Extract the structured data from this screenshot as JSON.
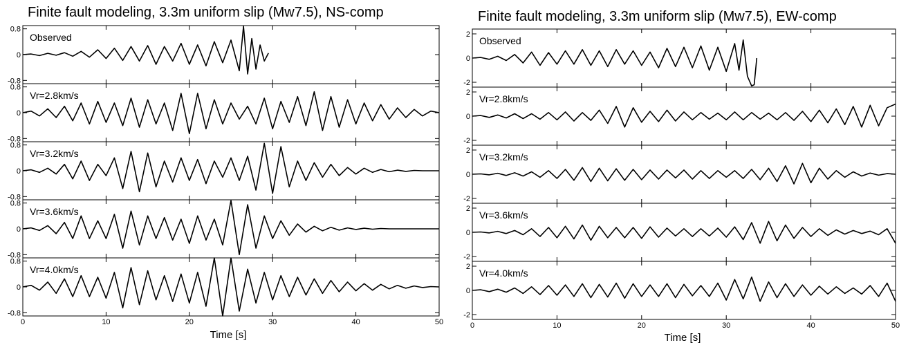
{
  "chart_data": [
    {
      "type": "line",
      "title": "Finite fault modeling, 3.3m uniform slip (Mw7.5), NS-comp",
      "xlabel": "Time [s]",
      "x_ticks": [
        0,
        10,
        20,
        30,
        40,
        50
      ],
      "xlim": [
        0,
        50
      ],
      "ylim": [
        -0.9,
        0.9
      ],
      "y_tick_values": [
        -0.8,
        0,
        0.8
      ],
      "y_tick_labels": [
        "-0.8",
        "0",
        "0.8"
      ],
      "series": [
        {
          "name": "Observed",
          "x": [
            0,
            1,
            2,
            3,
            4,
            5,
            6,
            7,
            8,
            9,
            10,
            11,
            12,
            13,
            14,
            15,
            16,
            17,
            18,
            19,
            20,
            21,
            22,
            23,
            24,
            25,
            26,
            26.5,
            27,
            27.5,
            28,
            28.5,
            29,
            29.5
          ],
          "y": [
            0,
            0.02,
            -0.03,
            0.04,
            -0.02,
            0.06,
            -0.05,
            0.1,
            -0.08,
            0.15,
            -0.12,
            0.2,
            -0.18,
            0.25,
            -0.2,
            0.28,
            -0.3,
            0.25,
            -0.2,
            0.35,
            -0.3,
            0.3,
            -0.35,
            0.4,
            -0.25,
            0.45,
            -0.5,
            0.88,
            -0.6,
            0.5,
            -0.45,
            0.3,
            -0.2,
            0.05
          ]
        },
        {
          "name": "Vr=2.8km/s",
          "x": [
            0,
            1,
            2,
            3,
            4,
            5,
            6,
            7,
            8,
            9,
            10,
            11,
            12,
            13,
            14,
            15,
            16,
            17,
            18,
            19,
            20,
            21,
            22,
            23,
            24,
            25,
            26,
            27,
            28,
            29,
            30,
            31,
            32,
            33,
            34,
            35,
            36,
            37,
            38,
            39,
            40,
            41,
            42,
            43,
            44,
            45,
            46,
            47,
            48,
            49,
            50
          ],
          "y": [
            0,
            0.05,
            -0.1,
            0.12,
            -0.15,
            0.2,
            -0.25,
            0.3,
            -0.35,
            0.35,
            -0.3,
            0.3,
            -0.4,
            0.45,
            -0.45,
            0.4,
            -0.35,
            0.3,
            -0.55,
            0.6,
            -0.65,
            0.6,
            -0.5,
            0.4,
            -0.35,
            0.3,
            -0.2,
            0.2,
            -0.35,
            0.45,
            -0.5,
            0.35,
            -0.3,
            0.5,
            -0.4,
            0.65,
            -0.55,
            0.5,
            -0.45,
            0.4,
            -0.35,
            0.3,
            -0.25,
            0.25,
            -0.2,
            0.15,
            -0.15,
            0.1,
            -0.1,
            0.05,
            0
          ]
        },
        {
          "name": "Vr=3.2km/s",
          "x": [
            0,
            1,
            2,
            3,
            4,
            5,
            6,
            7,
            8,
            9,
            10,
            11,
            12,
            13,
            14,
            15,
            16,
            17,
            18,
            19,
            20,
            21,
            22,
            23,
            24,
            25,
            26,
            27,
            28,
            29,
            30,
            31,
            32,
            33,
            34,
            35,
            36,
            37,
            38,
            39,
            40,
            41,
            42,
            43,
            44,
            45,
            46,
            47,
            48,
            49,
            50
          ],
          "y": [
            0,
            0.03,
            -0.05,
            0.08,
            -0.1,
            0.2,
            -0.25,
            0.3,
            -0.3,
            0.2,
            -0.15,
            0.4,
            -0.55,
            0.6,
            -0.65,
            0.55,
            -0.5,
            0.3,
            -0.35,
            0.4,
            -0.3,
            0.35,
            -0.4,
            0.3,
            -0.2,
            0.4,
            -0.3,
            0.45,
            -0.6,
            0.85,
            -0.7,
            0.75,
            -0.5,
            0.3,
            -0.3,
            0.25,
            -0.2,
            0.2,
            -0.15,
            0.1,
            -0.1,
            0.08,
            -0.05,
            0.04,
            -0.03,
            0.02,
            -0.02,
            0.01,
            0,
            0,
            0
          ]
        },
        {
          "name": "Vr=3.6km/s",
          "x": [
            0,
            1,
            2,
            3,
            4,
            5,
            6,
            7,
            8,
            9,
            10,
            11,
            12,
            13,
            14,
            15,
            16,
            17,
            18,
            19,
            20,
            21,
            22,
            23,
            24,
            25,
            26,
            27,
            28,
            29,
            30,
            31,
            32,
            33,
            34,
            35,
            36,
            37,
            38,
            39,
            40,
            41,
            42,
            43,
            44,
            45,
            46,
            47,
            48,
            49,
            50
          ],
          "y": [
            0,
            0.03,
            -0.05,
            0.1,
            -0.15,
            0.2,
            -0.3,
            0.4,
            -0.3,
            0.25,
            -0.3,
            0.45,
            -0.6,
            0.55,
            -0.5,
            0.4,
            -0.3,
            0.35,
            -0.35,
            0.3,
            -0.45,
            0.4,
            -0.35,
            0.3,
            -0.5,
            0.88,
            -0.8,
            0.75,
            -0.6,
            0.4,
            -0.3,
            0.25,
            -0.2,
            0.15,
            -0.1,
            0.08,
            -0.06,
            0.05,
            -0.04,
            0.03,
            -0.02,
            0.02,
            -0.01,
            0.01,
            0,
            0,
            0,
            0,
            0,
            0,
            0
          ]
        },
        {
          "name": "Vr=4.0km/s",
          "x": [
            0,
            1,
            2,
            3,
            4,
            5,
            6,
            7,
            8,
            9,
            10,
            11,
            12,
            13,
            14,
            15,
            16,
            17,
            18,
            19,
            20,
            21,
            22,
            23,
            24,
            25,
            26,
            27,
            28,
            29,
            30,
            31,
            32,
            33,
            34,
            35,
            36,
            37,
            38,
            39,
            40,
            41,
            42,
            43,
            44,
            45,
            46,
            47,
            48,
            49,
            50
          ],
          "y": [
            0,
            0.05,
            -0.1,
            0.15,
            -0.2,
            0.25,
            -0.3,
            0.35,
            -0.3,
            0.3,
            -0.35,
            0.45,
            -0.65,
            0.6,
            -0.55,
            0.5,
            -0.4,
            0.35,
            -0.45,
            0.4,
            -0.5,
            0.45,
            -0.6,
            0.9,
            -0.9,
            0.9,
            -0.75,
            0.55,
            -0.5,
            0.45,
            -0.4,
            0.35,
            -0.3,
            0.3,
            -0.25,
            0.25,
            -0.2,
            0.2,
            -0.15,
            0.15,
            -0.12,
            0.1,
            -0.1,
            0.08,
            -0.06,
            0.05,
            -0.04,
            0.03,
            -0.02,
            0.01,
            0
          ]
        }
      ]
    },
    {
      "type": "line",
      "title": "Finite fault modeling, 3.3m uniform slip (Mw7.5), EW-comp",
      "xlabel": "Time [s]",
      "x_ticks": [
        0,
        10,
        20,
        30,
        40,
        50
      ],
      "xlim": [
        0,
        50
      ],
      "ylim": [
        -2.4,
        2.4
      ],
      "y_tick_values": [
        -2,
        0,
        2
      ],
      "y_tick_labels": [
        "-2",
        "0",
        "2"
      ],
      "series": [
        {
          "name": "Observed",
          "x": [
            0,
            1,
            2,
            3,
            4,
            5,
            6,
            7,
            8,
            9,
            10,
            11,
            12,
            13,
            14,
            15,
            16,
            17,
            18,
            19,
            20,
            21,
            22,
            23,
            24,
            25,
            26,
            27,
            28,
            29,
            30,
            31,
            31.5,
            32,
            32.5,
            33,
            33.3,
            33.6
          ],
          "y": [
            0,
            0.05,
            -0.1,
            0.15,
            -0.2,
            0.3,
            -0.4,
            0.5,
            -0.6,
            0.45,
            -0.5,
            0.6,
            -0.5,
            0.7,
            -0.6,
            0.6,
            -0.7,
            0.7,
            -0.5,
            0.6,
            -0.6,
            0.5,
            -0.8,
            0.8,
            -0.7,
            0.9,
            -0.8,
            1,
            -1,
            0.9,
            -1.1,
            1.2,
            -1,
            1.5,
            -1.5,
            -2.3,
            -2.2,
            0
          ]
        },
        {
          "name": "Vr=2.8km/s",
          "x": [
            0,
            1,
            2,
            3,
            4,
            5,
            6,
            7,
            8,
            9,
            10,
            11,
            12,
            13,
            14,
            15,
            16,
            17,
            18,
            19,
            20,
            21,
            22,
            23,
            24,
            25,
            26,
            27,
            28,
            29,
            30,
            31,
            32,
            33,
            34,
            35,
            36,
            37,
            38,
            39,
            40,
            41,
            42,
            43,
            44,
            45,
            46,
            47,
            48,
            49,
            50
          ],
          "y": [
            0,
            0.05,
            -0.1,
            0.1,
            -0.15,
            0.2,
            -0.2,
            0.2,
            -0.25,
            0.3,
            -0.3,
            0.35,
            -0.4,
            0.3,
            -0.35,
            0.5,
            -0.6,
            0.8,
            -0.9,
            0.7,
            -0.5,
            0.4,
            -0.45,
            0.5,
            -0.4,
            0.35,
            -0.3,
            0.3,
            -0.25,
            0.25,
            -0.3,
            0.35,
            -0.3,
            0.3,
            -0.25,
            0.25,
            -0.3,
            0.3,
            -0.35,
            0.4,
            -0.45,
            0.5,
            -0.55,
            0.6,
            -0.7,
            0.8,
            -0.9,
            0.9,
            -0.8,
            0.7,
            1
          ]
        },
        {
          "name": "Vr=3.2km/s",
          "x": [
            0,
            1,
            2,
            3,
            4,
            5,
            6,
            7,
            8,
            9,
            10,
            11,
            12,
            13,
            14,
            15,
            16,
            17,
            18,
            19,
            20,
            21,
            22,
            23,
            24,
            25,
            26,
            27,
            28,
            29,
            30,
            31,
            32,
            33,
            34,
            35,
            36,
            37,
            38,
            39,
            40,
            41,
            42,
            43,
            44,
            45,
            46,
            47,
            48,
            49,
            50
          ],
          "y": [
            0,
            0.03,
            -0.05,
            0.08,
            -0.1,
            0.12,
            -0.15,
            0.2,
            -0.25,
            0.3,
            -0.35,
            0.4,
            -0.5,
            0.55,
            -0.6,
            0.5,
            -0.55,
            0.45,
            -0.5,
            0.4,
            -0.45,
            0.35,
            -0.4,
            0.35,
            -0.3,
            0.35,
            -0.4,
            0.3,
            -0.35,
            0.3,
            -0.25,
            0.3,
            -0.35,
            0.4,
            -0.45,
            0.5,
            -0.6,
            0.7,
            -0.8,
            0.9,
            -0.7,
            0.5,
            -0.4,
            0.3,
            -0.25,
            0.2,
            -0.15,
            0.1,
            -0.08,
            0.05,
            0
          ]
        },
        {
          "name": "Vr=3.6km/s",
          "x": [
            0,
            1,
            2,
            3,
            4,
            5,
            6,
            7,
            8,
            9,
            10,
            11,
            12,
            13,
            14,
            15,
            16,
            17,
            18,
            19,
            20,
            21,
            22,
            23,
            24,
            25,
            26,
            27,
            28,
            29,
            30,
            31,
            32,
            33,
            34,
            35,
            36,
            37,
            38,
            39,
            40,
            41,
            42,
            43,
            44,
            45,
            46,
            47,
            48,
            49,
            50
          ],
          "y": [
            0,
            0.03,
            -0.05,
            0.08,
            -0.1,
            0.15,
            -0.2,
            0.3,
            -0.35,
            0.4,
            -0.45,
            0.5,
            -0.55,
            0.6,
            -0.65,
            0.5,
            -0.45,
            0.4,
            -0.45,
            0.4,
            -0.5,
            0.45,
            -0.4,
            0.35,
            -0.3,
            0.3,
            -0.35,
            0.3,
            -0.3,
            0.35,
            -0.4,
            0.45,
            -0.6,
            0.8,
            -0.9,
            0.9,
            -0.7,
            0.6,
            -0.5,
            0.4,
            -0.35,
            0.3,
            -0.25,
            0.2,
            -0.15,
            0.15,
            -0.1,
            0.1,
            -0.2,
            0.3,
            -0.9
          ]
        },
        {
          "name": "Vr=4.0km/s",
          "x": [
            0,
            1,
            2,
            3,
            4,
            5,
            6,
            7,
            8,
            9,
            10,
            11,
            12,
            13,
            14,
            15,
            16,
            17,
            18,
            19,
            20,
            21,
            22,
            23,
            24,
            25,
            26,
            27,
            28,
            29,
            30,
            31,
            32,
            33,
            34,
            35,
            36,
            37,
            38,
            39,
            40,
            41,
            42,
            43,
            44,
            45,
            46,
            47,
            48,
            49,
            50
          ],
          "y": [
            0,
            0.05,
            -0.1,
            0.1,
            -0.15,
            0.2,
            -0.25,
            0.3,
            -0.35,
            0.4,
            -0.4,
            0.45,
            -0.5,
            0.55,
            -0.6,
            0.5,
            -0.55,
            0.6,
            -0.65,
            0.55,
            -0.5,
            0.45,
            -0.5,
            0.55,
            -0.6,
            0.5,
            -0.45,
            0.4,
            -0.5,
            0.6,
            -0.8,
            0.9,
            -0.7,
            1.1,
            -0.9,
            0.7,
            -0.6,
            0.55,
            -0.5,
            0.45,
            -0.4,
            0.35,
            -0.3,
            0.3,
            -0.25,
            0.2,
            -0.3,
            0.4,
            -0.5,
            0.6,
            -0.9
          ]
        }
      ]
    }
  ]
}
